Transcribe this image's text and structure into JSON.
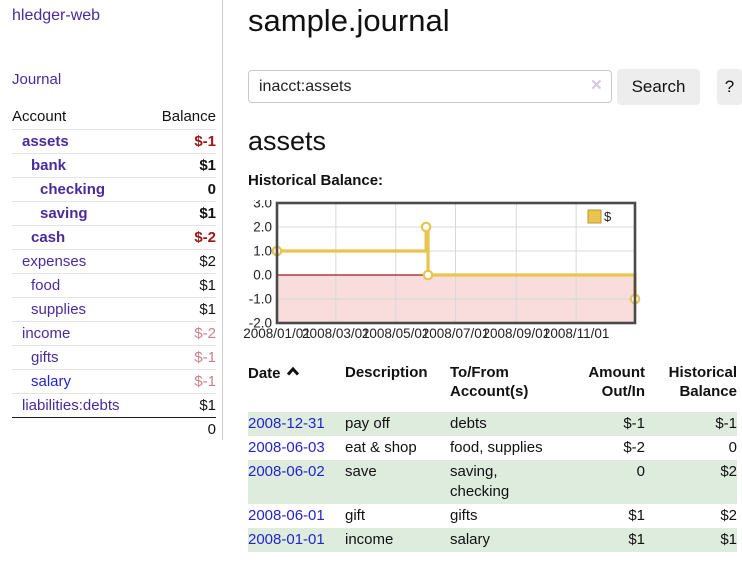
{
  "palette": {
    "link_purple": "#4a2b9c",
    "link_blue": "#2424cf",
    "negative_strong": "#9e1616",
    "negative_pale": "#c9828b",
    "row_green": "#ddecdc",
    "chart_line_gold": "#e9c44e",
    "chart_negative_fill": "#f9dcdc",
    "chart_zero_line": "#9b1a1a",
    "chart_border": "#4a4a4a"
  },
  "app": {
    "brand": "hledger-web"
  },
  "sidebar": {
    "journal_link": "Journal",
    "accounts": {
      "account_header": "Account",
      "balance_header": "Balance",
      "rows": [
        {
          "account": "assets",
          "balance": "$-1"
        },
        {
          "account": "bank",
          "balance": "$1"
        },
        {
          "account": "checking",
          "balance": "0"
        },
        {
          "account": "saving",
          "balance": "$1"
        },
        {
          "account": "cash",
          "balance": "$-2"
        },
        {
          "account": "expenses",
          "balance": "$2"
        },
        {
          "account": "food",
          "balance": "$1"
        },
        {
          "account": "supplies",
          "balance": "$1"
        },
        {
          "account": "income",
          "balance": "$-2"
        },
        {
          "account": "gifts",
          "balance": "$-1"
        },
        {
          "account": "salary",
          "balance": "$-1"
        },
        {
          "account": "liabilities:debts",
          "balance": "$1"
        }
      ],
      "total": "0"
    }
  },
  "header": {
    "title": "sample.journal"
  },
  "search": {
    "value": "inacct:assets",
    "clear_label": "×",
    "search_button": "Search",
    "help_button": "?"
  },
  "main": {
    "account_title": "assets",
    "section_label": "Historical Balance:"
  },
  "chart_data": {
    "type": "line",
    "step": true,
    "title": "Historical Balance:",
    "legend": [
      {
        "label": "$",
        "color": "#e9c44e"
      }
    ],
    "series": [
      {
        "name": "$",
        "points": [
          [
            "2008-01-01",
            1
          ],
          [
            "2008-06-01",
            2
          ],
          [
            "2008-06-03",
            0
          ],
          [
            "2008-12-31",
            -1
          ]
        ]
      }
    ],
    "x_domain": [
      "2008-01-01",
      "2008-12-31"
    ],
    "x_tick_dates": [
      "2008-01-01",
      "2008-03-01",
      "2008-05-01",
      "2008-07-01",
      "2008-09-01",
      "2008-11-01"
    ],
    "x_tick_labels": [
      "2008/01/01",
      "2008/03/01",
      "2008/05/01",
      "2008/07/01",
      "2008/09/01",
      "2008/11/01"
    ],
    "y_ticks": [
      3.0,
      2.0,
      1.0,
      0.0,
      -1.0,
      -2.0
    ],
    "ylim": [
      -2,
      3
    ],
    "grid": true,
    "line_color": "#e9c44e",
    "negative_region_fill": "#f9dcdc",
    "zero_line_color": "#9b1a1a"
  },
  "register": {
    "columns": {
      "date": "Date",
      "description": "Description",
      "tofrom_line1": "To/From",
      "tofrom_line2": "Account(s)",
      "amount_line1": "Amount",
      "amount_line2": "Out/In",
      "balance_line1": "Historical",
      "balance_line2": "Balance"
    },
    "rows": [
      {
        "date": "2008-12-31",
        "description": "pay off",
        "accounts": "debts",
        "amount": "$-1",
        "balance": "$-1"
      },
      {
        "date": "2008-06-03",
        "description": "eat & shop",
        "accounts": "food, supplies",
        "amount": "$-2",
        "balance": "0"
      },
      {
        "date": "2008-06-02",
        "description": "save",
        "accounts": "saving, checking",
        "amount": "0",
        "balance": "$2"
      },
      {
        "date": "2008-06-01",
        "description": "gift",
        "accounts": "gifts",
        "amount": "$1",
        "balance": "$2"
      },
      {
        "date": "2008-01-01",
        "description": "income",
        "accounts": "salary",
        "amount": "$1",
        "balance": "$1"
      }
    ]
  }
}
